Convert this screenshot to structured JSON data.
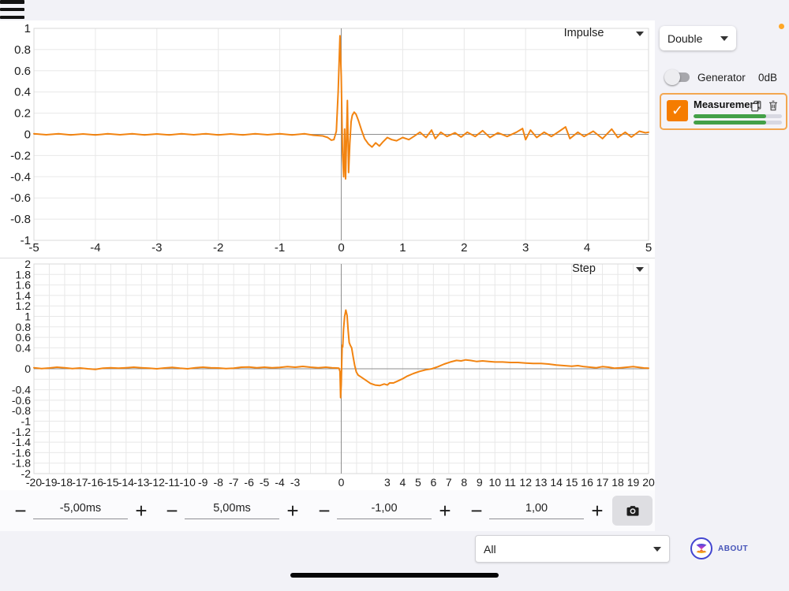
{
  "app": {
    "background": "#F2F2F7",
    "trace_color": "#F28411"
  },
  "sidebar": {
    "window_mode": {
      "value": "Double"
    },
    "menu": {
      "notification_dot_color": "#FFA726"
    },
    "generator": {
      "label": "Generator",
      "level": "0dB",
      "enabled": false
    },
    "measurement": {
      "label": "Measurement",
      "checked": true,
      "check_glyph": "✓",
      "progress_percent": [
        82,
        82
      ],
      "bar_color": "#43A047",
      "track_color": "#D8D8E2",
      "border_color": "#F3A64F",
      "checkbox_color": "#F57C00"
    }
  },
  "toolbar": {
    "minus_glyph": "−",
    "plus_glyph": "+",
    "fields": [
      {
        "value": "-5,00ms"
      },
      {
        "value": "5,00ms"
      },
      {
        "value": "-1,00"
      },
      {
        "value": "1,00"
      }
    ]
  },
  "footer": {
    "graph_filter": {
      "value": "All"
    },
    "about": {
      "label": "ABOUT"
    }
  },
  "chart_data": [
    {
      "type": "line",
      "selector_label": "Impulse",
      "xlim": [
        -5,
        5
      ],
      "ylim": [
        -1,
        1
      ],
      "x_grid_step": 1,
      "y_grid_step": 0.2,
      "grid": true,
      "cursor_x": 0,
      "x_ticks": [
        [
          -5,
          "-5"
        ],
        [
          -4,
          "-4"
        ],
        [
          -3,
          "-3"
        ],
        [
          -2,
          "-2"
        ],
        [
          -1,
          "-1"
        ],
        [
          0,
          "0"
        ],
        [
          1,
          "1"
        ],
        [
          2,
          "2"
        ],
        [
          3,
          "3"
        ],
        [
          4,
          "4"
        ],
        [
          5,
          "5"
        ]
      ],
      "y_ticks": [
        [
          1,
          "1"
        ],
        [
          0.8,
          "0.8"
        ],
        [
          0.6,
          "0.6"
        ],
        [
          0.4,
          "0.4"
        ],
        [
          0.2,
          "0.2"
        ],
        [
          0,
          "0"
        ],
        [
          -0.2,
          "-0.2"
        ],
        [
          -0.4,
          "-0.4"
        ],
        [
          -0.6,
          "-0.6"
        ],
        [
          -0.8,
          "-0.8"
        ],
        [
          -1,
          "-1"
        ]
      ],
      "series": [
        {
          "name": "measurement-impulse",
          "color": "#F28411",
          "points": [
            [
              -5,
              0.005
            ],
            [
              -4.8,
              -0.004
            ],
            [
              -4.6,
              0.006
            ],
            [
              -4.4,
              -0.005
            ],
            [
              -4.2,
              0.004
            ],
            [
              -4,
              -0.006
            ],
            [
              -3.8,
              0.005
            ],
            [
              -3.6,
              -0.004
            ],
            [
              -3.4,
              0.006
            ],
            [
              -3.2,
              -0.005
            ],
            [
              -3,
              0.004
            ],
            [
              -2.8,
              -0.006
            ],
            [
              -2.6,
              0.005
            ],
            [
              -2.4,
              -0.004
            ],
            [
              -2.2,
              0.006
            ],
            [
              -2,
              -0.005
            ],
            [
              -1.8,
              0.004
            ],
            [
              -1.6,
              -0.006
            ],
            [
              -1.4,
              0.005
            ],
            [
              -1.2,
              -0.004
            ],
            [
              -1,
              0.005
            ],
            [
              -0.8,
              -0.005
            ],
            [
              -0.6,
              0.005
            ],
            [
              -0.45,
              -0.008
            ],
            [
              -0.3,
              -0.015
            ],
            [
              -0.22,
              -0.03
            ],
            [
              -0.16,
              -0.055
            ],
            [
              -0.12,
              -0.05
            ],
            [
              -0.08,
              0.03
            ],
            [
              -0.05,
              0.4
            ],
            [
              -0.02,
              0.93
            ],
            [
              0,
              0.55
            ],
            [
              0.02,
              -0.18
            ],
            [
              0.04,
              -0.4
            ],
            [
              0.055,
              0.05
            ],
            [
              0.07,
              -0.42
            ],
            [
              0.1,
              0.32
            ],
            [
              0.12,
              -0.36
            ],
            [
              0.14,
              -0.08
            ],
            [
              0.16,
              0.12
            ],
            [
              0.18,
              0.18
            ],
            [
              0.21,
              0.21
            ],
            [
              0.24,
              0.19
            ],
            [
              0.28,
              0.13
            ],
            [
              0.33,
              0.04
            ],
            [
              0.38,
              -0.04
            ],
            [
              0.44,
              -0.09
            ],
            [
              0.5,
              -0.12
            ],
            [
              0.56,
              -0.08
            ],
            [
              0.62,
              -0.11
            ],
            [
              0.68,
              -0.07
            ],
            [
              0.75,
              -0.03
            ],
            [
              0.82,
              -0.05
            ],
            [
              0.9,
              -0.06
            ],
            [
              1,
              -0.03
            ],
            [
              1.1,
              -0.05
            ],
            [
              1.18,
              -0.02
            ],
            [
              1.28,
              0.02
            ],
            [
              1.38,
              -0.03
            ],
            [
              1.47,
              0.04
            ],
            [
              1.53,
              -0.04
            ],
            [
              1.62,
              0.02
            ],
            [
              1.72,
              -0.02
            ],
            [
              1.85,
              0.015
            ],
            [
              1.95,
              -0.025
            ],
            [
              2.05,
              0.02
            ],
            [
              2.18,
              -0.02
            ],
            [
              2.3,
              0.035
            ],
            [
              2.42,
              -0.03
            ],
            [
              2.55,
              0.015
            ],
            [
              2.7,
              -0.02
            ],
            [
              2.85,
              0.02
            ],
            [
              2.95,
              0.055
            ],
            [
              3,
              -0.05
            ],
            [
              3.08,
              0.04
            ],
            [
              3.18,
              -0.03
            ],
            [
              3.3,
              0.02
            ],
            [
              3.42,
              -0.02
            ],
            [
              3.55,
              0.03
            ],
            [
              3.65,
              0.07
            ],
            [
              3.72,
              -0.04
            ],
            [
              3.85,
              0.02
            ],
            [
              3.95,
              -0.02
            ],
            [
              4.1,
              0.03
            ],
            [
              4.25,
              -0.04
            ],
            [
              4.4,
              0.05
            ],
            [
              4.5,
              -0.03
            ],
            [
              4.62,
              0.02
            ],
            [
              4.72,
              -0.025
            ],
            [
              4.85,
              0.03
            ],
            [
              4.95,
              0.015
            ],
            [
              5,
              0.02
            ]
          ]
        }
      ]
    },
    {
      "type": "line",
      "selector_label": "Step",
      "xlim": [
        -20,
        20
      ],
      "ylim": [
        -2,
        2
      ],
      "x_grid_step": 1,
      "y_grid_step": 0.2,
      "grid": true,
      "cursor_x": 0,
      "x_ticks": [
        [
          -20,
          "-20"
        ],
        [
          -19,
          "-19"
        ],
        [
          -18,
          "-18"
        ],
        [
          -17,
          "-17"
        ],
        [
          -16,
          "-16"
        ],
        [
          -15,
          "-15"
        ],
        [
          -14,
          "-14"
        ],
        [
          -13,
          "-13"
        ],
        [
          -12,
          "-12"
        ],
        [
          -11,
          "-11"
        ],
        [
          -10,
          "-10"
        ],
        [
          -9,
          "-9"
        ],
        [
          -8,
          "-8"
        ],
        [
          -7,
          "-7"
        ],
        [
          -6,
          "-6"
        ],
        [
          -5,
          "-5"
        ],
        [
          -4,
          "-4"
        ],
        [
          -3,
          "-3"
        ],
        [
          -2,
          ""
        ],
        [
          -1,
          ""
        ],
        [
          0,
          "0"
        ],
        [
          1,
          ""
        ],
        [
          2,
          ""
        ],
        [
          3,
          "3"
        ],
        [
          4,
          "4"
        ],
        [
          5,
          "5"
        ],
        [
          6,
          "6"
        ],
        [
          7,
          "7"
        ],
        [
          8,
          "8"
        ],
        [
          9,
          "9"
        ],
        [
          10,
          "10"
        ],
        [
          11,
          "11"
        ],
        [
          12,
          "12"
        ],
        [
          13,
          "13"
        ],
        [
          14,
          "14"
        ],
        [
          15,
          "15"
        ],
        [
          16,
          "16"
        ],
        [
          17,
          "17"
        ],
        [
          18,
          "18"
        ],
        [
          19,
          "19"
        ],
        [
          20,
          "20"
        ]
      ],
      "y_ticks": [
        [
          2,
          "2"
        ],
        [
          1.8,
          "1.8"
        ],
        [
          1.6,
          "1.6"
        ],
        [
          1.4,
          "1.4"
        ],
        [
          1.2,
          "1.2"
        ],
        [
          1,
          "1"
        ],
        [
          0.8,
          "0.8"
        ],
        [
          0.6,
          "0.6"
        ],
        [
          0.4,
          "0.4"
        ],
        [
          0.2,
          ""
        ],
        [
          0,
          "0"
        ],
        [
          -0.2,
          ""
        ],
        [
          -0.4,
          "-0.4"
        ],
        [
          -0.6,
          "-0.6"
        ],
        [
          -0.8,
          "-0.8"
        ],
        [
          -1,
          "-1"
        ],
        [
          -1.2,
          "-1.2"
        ],
        [
          -1.4,
          "-1.4"
        ],
        [
          -1.6,
          "-1.6"
        ],
        [
          -1.8,
          "-1.8"
        ],
        [
          -2,
          "-2"
        ]
      ],
      "series": [
        {
          "name": "measurement-step",
          "color": "#F28411",
          "points": [
            [
              -20,
              0.02
            ],
            [
              -19.5,
              0.005
            ],
            [
              -19,
              0.015
            ],
            [
              -18.5,
              0.03
            ],
            [
              -18,
              0.02
            ],
            [
              -17.5,
              0.005
            ],
            [
              -17,
              0.015
            ],
            [
              -16.5,
              0
            ],
            [
              -16,
              -0.01
            ],
            [
              -15.5,
              0.01
            ],
            [
              -15,
              0.02
            ],
            [
              -14.5,
              0.01
            ],
            [
              -14,
              0.02
            ],
            [
              -13.5,
              0.03
            ],
            [
              -13,
              0.02
            ],
            [
              -12.5,
              0.01
            ],
            [
              -12,
              0
            ],
            [
              -11.5,
              0.015
            ],
            [
              -11,
              0.025
            ],
            [
              -10.5,
              0.01
            ],
            [
              -10,
              0
            ],
            [
              -9.5,
              0.02
            ],
            [
              -9,
              0.03
            ],
            [
              -8.5,
              0.02
            ],
            [
              -8,
              0.015
            ],
            [
              -7.5,
              0.005
            ],
            [
              -7,
              0.01
            ],
            [
              -6.5,
              0.03
            ],
            [
              -6,
              0.035
            ],
            [
              -5.5,
              0.02
            ],
            [
              -5,
              0.03
            ],
            [
              -4.5,
              0.02
            ],
            [
              -4,
              0.025
            ],
            [
              -3.5,
              0.04
            ],
            [
              -3,
              0.03
            ],
            [
              -2.5,
              0.045
            ],
            [
              -2,
              0.03
            ],
            [
              -1.5,
              0.02
            ],
            [
              -1,
              0.03
            ],
            [
              -0.6,
              0.02
            ],
            [
              -0.3,
              0.015
            ],
            [
              -0.15,
              0.01
            ],
            [
              -0.08,
              -0.05
            ],
            [
              -0.04,
              -0.55
            ],
            [
              0,
              -0.3
            ],
            [
              0.03,
              0.1
            ],
            [
              0.06,
              0.45
            ],
            [
              0.1,
              0.42
            ],
            [
              0.15,
              0.75
            ],
            [
              0.22,
              1
            ],
            [
              0.3,
              1.12
            ],
            [
              0.38,
              1.02
            ],
            [
              0.45,
              0.72
            ],
            [
              0.52,
              0.5
            ],
            [
              0.6,
              0.44
            ],
            [
              0.68,
              0.4
            ],
            [
              0.78,
              0.22
            ],
            [
              0.88,
              0.06
            ],
            [
              0.98,
              -0.06
            ],
            [
              1.1,
              -0.12
            ],
            [
              1.3,
              -0.16
            ],
            [
              1.6,
              -0.22
            ],
            [
              1.9,
              -0.28
            ],
            [
              2.2,
              -0.31
            ],
            [
              2.5,
              -0.32
            ],
            [
              2.8,
              -0.29
            ],
            [
              3,
              -0.31
            ],
            [
              3.15,
              -0.27
            ],
            [
              3.4,
              -0.27
            ],
            [
              3.7,
              -0.23
            ],
            [
              4,
              -0.19
            ],
            [
              4.3,
              -0.14
            ],
            [
              4.7,
              -0.09
            ],
            [
              5.1,
              -0.05
            ],
            [
              5.5,
              -0.02
            ],
            [
              5.9,
              0
            ],
            [
              6.3,
              0.04
            ],
            [
              6.7,
              0.09
            ],
            [
              7.1,
              0.13
            ],
            [
              7.5,
              0.16
            ],
            [
              7.8,
              0.15
            ],
            [
              8.1,
              0.17
            ],
            [
              8.4,
              0.16
            ],
            [
              8.8,
              0.14
            ],
            [
              9.2,
              0.15
            ],
            [
              9.6,
              0.14
            ],
            [
              10,
              0.13
            ],
            [
              10.5,
              0.13
            ],
            [
              11,
              0.12
            ],
            [
              11.5,
              0.12
            ],
            [
              12,
              0.11
            ],
            [
              12.5,
              0.1
            ],
            [
              13,
              0.1
            ],
            [
              13.5,
              0.09
            ],
            [
              14,
              0.07
            ],
            [
              14.5,
              0.06
            ],
            [
              15,
              0.05
            ],
            [
              15.4,
              0.06
            ],
            [
              15.8,
              0.04
            ],
            [
              16.2,
              0.03
            ],
            [
              16.6,
              0.02
            ],
            [
              17,
              0.04
            ],
            [
              17.4,
              0.03
            ],
            [
              17.8,
              0.01
            ],
            [
              18.2,
              0.02
            ],
            [
              18.6,
              0.03
            ],
            [
              19,
              0.04
            ],
            [
              19.4,
              0.025
            ],
            [
              19.7,
              0.015
            ],
            [
              20,
              0.01
            ]
          ]
        }
      ]
    }
  ]
}
